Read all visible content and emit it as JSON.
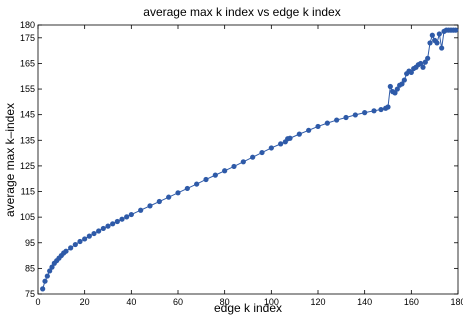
{
  "chart_data": {
    "type": "line",
    "title": "average max k  index vs edge k  index",
    "xlabel": "edge k  index",
    "ylabel": "average max k–index",
    "xlim": [
      0,
      180
    ],
    "ylim": [
      75,
      180
    ],
    "x_ticks": [
      0,
      20,
      40,
      60,
      80,
      100,
      120,
      140,
      160,
      180
    ],
    "y_ticks": [
      75,
      85,
      95,
      105,
      115,
      125,
      135,
      145,
      155,
      165,
      175,
      180
    ],
    "grid": false,
    "legend": "none",
    "series": [
      {
        "color": "#2e5aa8",
        "marker": "circle",
        "points": [
          [
            2,
            77
          ],
          [
            3,
            80
          ],
          [
            4,
            82
          ],
          [
            5,
            84
          ],
          [
            6,
            85.5
          ],
          [
            7,
            87
          ],
          [
            8,
            88
          ],
          [
            9,
            89
          ],
          [
            10,
            90
          ],
          [
            11,
            91
          ],
          [
            12,
            91.7
          ],
          [
            14,
            93
          ],
          [
            16,
            94.3
          ],
          [
            18,
            95.5
          ],
          [
            20,
            96.5
          ],
          [
            22,
            97.6
          ],
          [
            24,
            98.6
          ],
          [
            26,
            99.6
          ],
          [
            28,
            100.6
          ],
          [
            30,
            101.5
          ],
          [
            32,
            102.4
          ],
          [
            34,
            103.3
          ],
          [
            36,
            104.2
          ],
          [
            38,
            105.1
          ],
          [
            40,
            106
          ],
          [
            44,
            107.7
          ],
          [
            48,
            109.4
          ],
          [
            52,
            111.1
          ],
          [
            56,
            112.8
          ],
          [
            60,
            114.5
          ],
          [
            64,
            116.2
          ],
          [
            68,
            117.9
          ],
          [
            72,
            119.7
          ],
          [
            76,
            121.4
          ],
          [
            80,
            123.1
          ],
          [
            84,
            124.8
          ],
          [
            88,
            126.6
          ],
          [
            92,
            128.4
          ],
          [
            96,
            130.2
          ],
          [
            100,
            132
          ],
          [
            104,
            133.6
          ],
          [
            106,
            134.4
          ],
          [
            107,
            135.6
          ],
          [
            108,
            135.8
          ],
          [
            112,
            137.4
          ],
          [
            116,
            138.9
          ],
          [
            120,
            140.4
          ],
          [
            124,
            141.7
          ],
          [
            128,
            142.9
          ],
          [
            132,
            143.9
          ],
          [
            136,
            144.9
          ],
          [
            140,
            145.8
          ],
          [
            144,
            146.5
          ],
          [
            147,
            147
          ],
          [
            149,
            147.5
          ],
          [
            150,
            148
          ],
          [
            151,
            156
          ],
          [
            152,
            154
          ],
          [
            153,
            153.5
          ],
          [
            154,
            155
          ],
          [
            155,
            156.5
          ],
          [
            156,
            157
          ],
          [
            157,
            158.5
          ],
          [
            158,
            161
          ],
          [
            159,
            162
          ],
          [
            160,
            161.5
          ],
          [
            161,
            163
          ],
          [
            162,
            163.5
          ],
          [
            163,
            164.5
          ],
          [
            164,
            165
          ],
          [
            165,
            163.5
          ],
          [
            166,
            165.5
          ],
          [
            167,
            167
          ],
          [
            168,
            173
          ],
          [
            169,
            176
          ],
          [
            170,
            174
          ],
          [
            171,
            173
          ],
          [
            172,
            176.5
          ],
          [
            173,
            171
          ],
          [
            174,
            177.5
          ],
          [
            175,
            178
          ],
          [
            176,
            178
          ],
          [
            177,
            178
          ],
          [
            178,
            178
          ],
          [
            179,
            178
          ]
        ]
      }
    ]
  }
}
